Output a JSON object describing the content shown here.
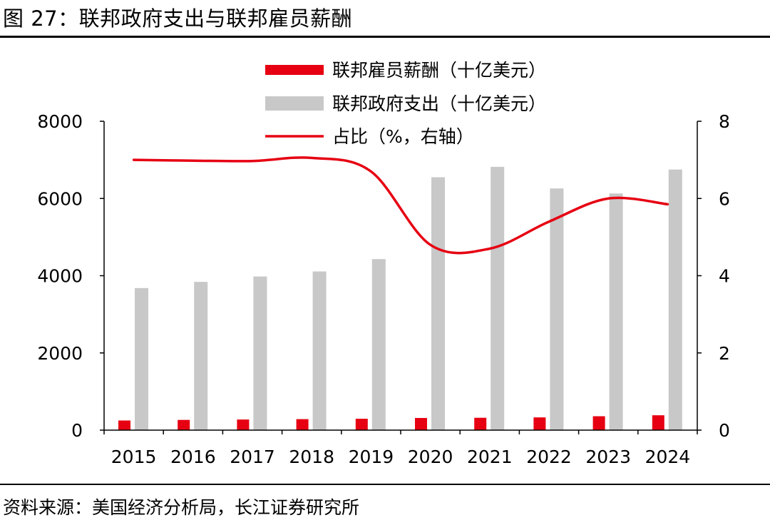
{
  "figure": {
    "title": "图 27：联邦政府支出与联邦雇员薪酬",
    "source": "资料来源：美国经济分析局，长江证券研究所"
  },
  "colors": {
    "compensation": "#e60012",
    "spending": "#c8c8c8",
    "share_line": "#e60012",
    "axis": "#000000"
  },
  "chart_data": {
    "type": "bar",
    "categories": [
      "2015",
      "2016",
      "2017",
      "2018",
      "2019",
      "2020",
      "2021",
      "2022",
      "2023",
      "2024"
    ],
    "series": [
      {
        "name": "联邦雇员薪酬（十亿美元）",
        "type": "bar",
        "axis": "left",
        "values": [
          250,
          265,
          275,
          285,
          295,
          315,
          320,
          330,
          360,
          385
        ]
      },
      {
        "name": "联邦政府支出（十亿美元）",
        "type": "bar",
        "axis": "left",
        "values": [
          3680,
          3840,
          3980,
          4110,
          4430,
          6550,
          6820,
          6260,
          6130,
          6750
        ]
      },
      {
        "name": "占比（%，右轴）",
        "type": "line",
        "axis": "right",
        "values": [
          7.0,
          6.98,
          6.97,
          7.05,
          6.7,
          4.8,
          4.7,
          5.4,
          6.0,
          5.85
        ]
      }
    ],
    "y_left": {
      "lim": [
        0,
        8000
      ],
      "ticks": [
        "0",
        "2000",
        "4000",
        "6000",
        "8000"
      ]
    },
    "y_right": {
      "lim": [
        0,
        8
      ],
      "ticks": [
        "0",
        "2",
        "4",
        "6",
        "8"
      ]
    },
    "legend_position": "top-center",
    "grid": false
  }
}
